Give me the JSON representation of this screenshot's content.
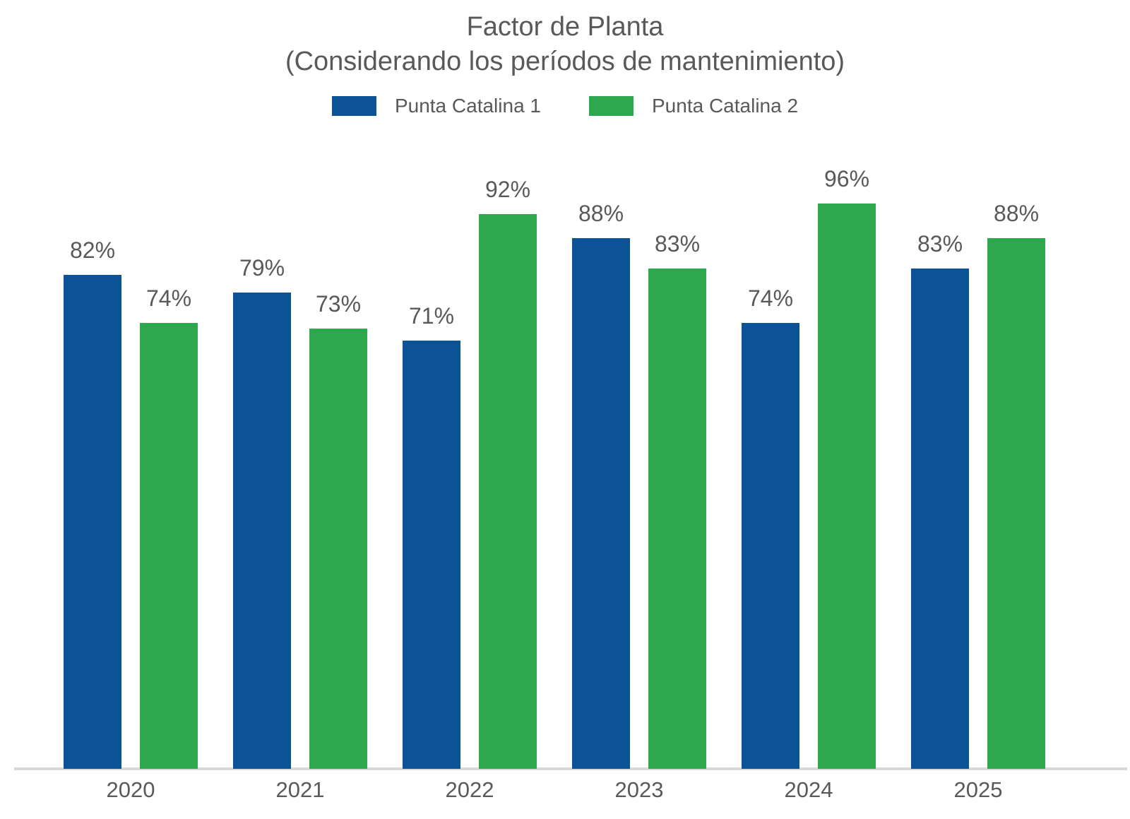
{
  "title": {
    "line1": "Factor de Planta",
    "line2": "(Considerando los períodos de mantenimiento)"
  },
  "legend": [
    {
      "label": "Punta Catalina 1",
      "color": "#0b5394"
    },
    {
      "label": "Punta Catalina 2",
      "color": "#2ea84e"
    }
  ],
  "colors": {
    "series1": "#0b5394",
    "series2": "#2ea84e",
    "text": "#58595b",
    "axis_line": "#d9d9d9",
    "background": "#ffffff"
  },
  "chart_data": {
    "type": "bar",
    "title": "Factor de Planta (Considerando los períodos de mantenimiento)",
    "categories": [
      "2020",
      "2021",
      "2022",
      "2023",
      "2024",
      "2025"
    ],
    "series": [
      {
        "name": "Punta Catalina 1",
        "color": "#0b5394",
        "values": [
          82,
          79,
          71,
          88,
          74,
          83
        ]
      },
      {
        "name": "Punta Catalina 2",
        "color": "#2ea84e",
        "values": [
          74,
          73,
          92,
          83,
          96,
          88
        ]
      }
    ],
    "data_labels": [
      [
        "82%",
        "74%"
      ],
      [
        "79%",
        "73%"
      ],
      [
        "71%",
        "92%"
      ],
      [
        "88%",
        "83%"
      ],
      [
        "74%",
        "96%"
      ],
      [
        "83%",
        "88%"
      ]
    ],
    "value_format": "percent",
    "xlabel": "",
    "ylabel": "",
    "ylim": [
      0,
      100
    ],
    "grid": false,
    "legend_position": "top",
    "y_axis_visible": false,
    "x_axis_line": true
  }
}
